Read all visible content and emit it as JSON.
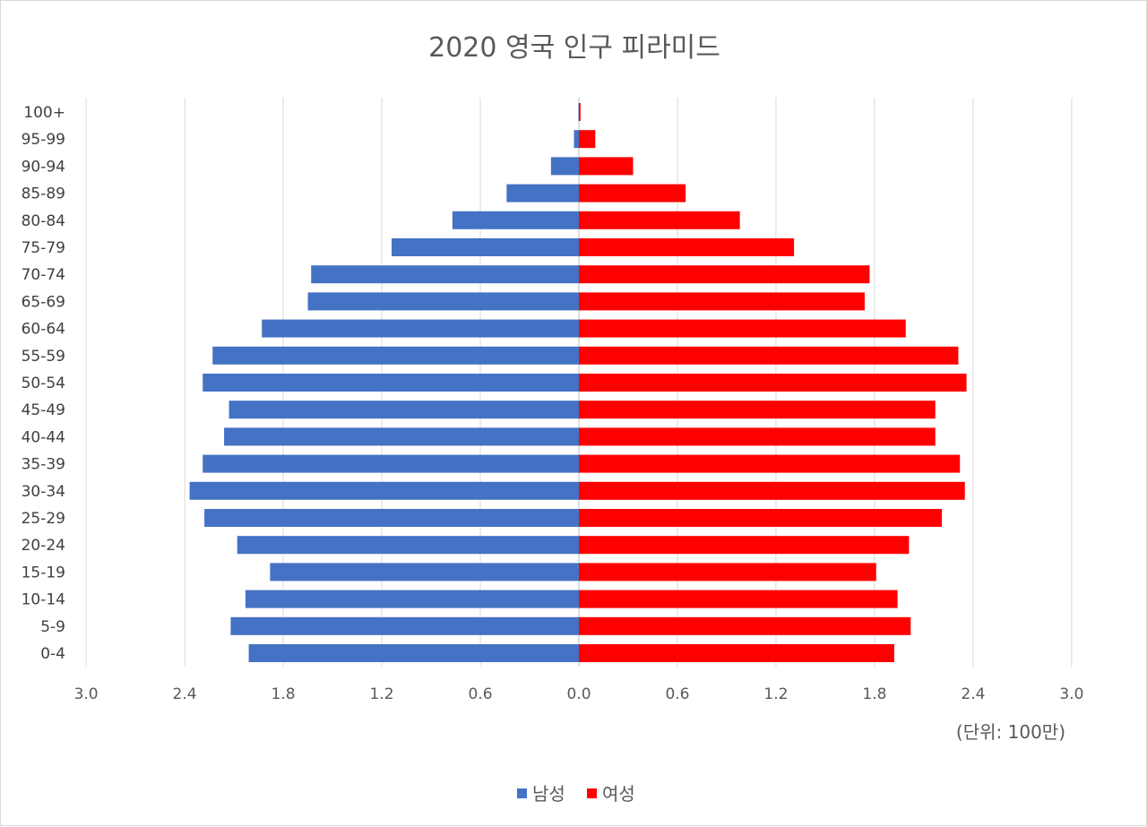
{
  "chart_data": {
    "type": "bar",
    "orientation": "horizontal",
    "title": "2020 영국 인구 피라미드",
    "unit_note": "(단위: 100만)",
    "categories": [
      "100+",
      "95-99",
      "90-94",
      "85-89",
      "80-84",
      "75-79",
      "70-74",
      "65-69",
      "60-64",
      "55-59",
      "50-54",
      "45-49",
      "40-44",
      "35-39",
      "30-34",
      "25-29",
      "20-24",
      "15-19",
      "10-14",
      "5-9",
      "0-4"
    ],
    "series": [
      {
        "name": "남성",
        "color": "#4472c4",
        "values": [
          0.003,
          0.03,
          0.17,
          0.44,
          0.77,
          1.14,
          1.63,
          1.65,
          1.93,
          2.23,
          2.29,
          2.13,
          2.16,
          2.29,
          2.37,
          2.28,
          2.08,
          1.88,
          2.03,
          2.12,
          2.01
        ]
      },
      {
        "name": "여성",
        "color": "#ff0000",
        "values": [
          0.01,
          0.1,
          0.33,
          0.65,
          0.98,
          1.31,
          1.77,
          1.74,
          1.99,
          2.31,
          2.36,
          2.17,
          2.17,
          2.32,
          2.35,
          2.21,
          2.01,
          1.81,
          1.94,
          2.02,
          1.92
        ]
      }
    ],
    "x_ticks": [
      "3.0",
      "2.4",
      "1.8",
      "1.2",
      "0.6",
      "0.0",
      "0.6",
      "1.2",
      "1.8",
      "2.4",
      "3.0"
    ],
    "xlim": [
      -3.0,
      3.0
    ],
    "grid": "vertical",
    "legend": "bottom-center"
  }
}
